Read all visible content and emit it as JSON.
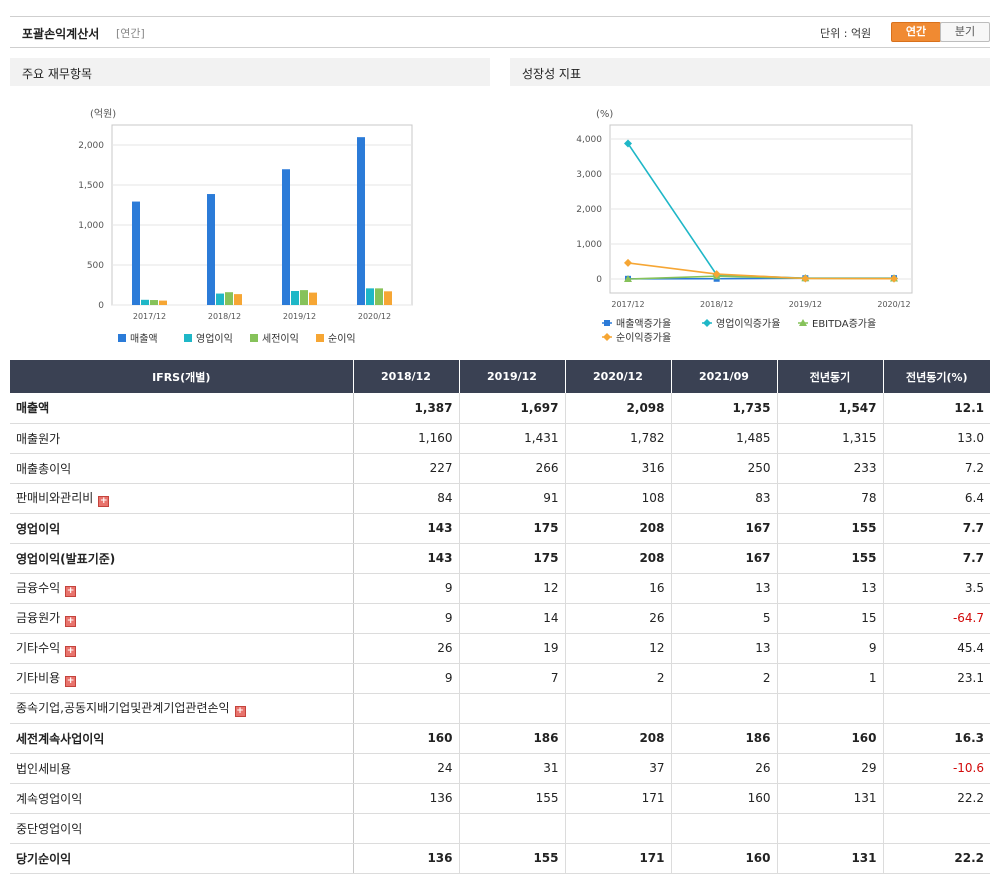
{
  "header": {
    "title": "포괄손익계산서",
    "period_tag": "[연간]",
    "unit_label": "단위 : 억원",
    "toggle_annual": "연간",
    "toggle_quarter": "분기"
  },
  "panels": {
    "left_title": "주요 재무항목",
    "right_title": "성장성 지표"
  },
  "chart_data": [
    {
      "type": "bar",
      "ylabel": "(억원)",
      "categories": [
        "2017/12",
        "2018/12",
        "2019/12",
        "2020/12"
      ],
      "yticks": [
        "0",
        "500",
        "1,000",
        "1,500",
        "2,000"
      ],
      "ylim": [
        0,
        2250
      ],
      "legend_position": "bottom",
      "grid": true,
      "series": [
        {
          "name": "매출액",
          "color": "#2b7bd8",
          "values": [
            1293,
            1387,
            1697,
            2098
          ]
        },
        {
          "name": "영업이익",
          "color": "#1fb7c7",
          "values": [
            65,
            143,
            175,
            208
          ]
        },
        {
          "name": "세전이익",
          "color": "#86c25a",
          "values": [
            62,
            160,
            186,
            208
          ]
        },
        {
          "name": "순이익",
          "color": "#f6a634",
          "values": [
            55,
            136,
            155,
            171
          ]
        }
      ]
    },
    {
      "type": "line",
      "ylabel": "(%)",
      "categories": [
        "2017/12",
        "2018/12",
        "2019/12",
        "2020/12"
      ],
      "yticks": [
        "0",
        "1,000",
        "2,000",
        "3,000",
        "4,000"
      ],
      "ylim": [
        -400,
        4400
      ],
      "legend_position": "bottom",
      "grid": true,
      "series": [
        {
          "name": "매출액증가율",
          "color": "#2b7bd8",
          "marker": "square",
          "values": [
            5,
            7,
            22,
            24
          ]
        },
        {
          "name": "영업이익증가율",
          "color": "#1fb7c7",
          "marker": "diamond",
          "values": [
            3870,
            120,
            22,
            19
          ]
        },
        {
          "name": "EBITDA증가율",
          "color": "#86c25a",
          "marker": "triangle",
          "values": [
            0,
            80,
            20,
            15
          ]
        },
        {
          "name": "순이익증가율",
          "color": "#f6a634",
          "marker": "diamond",
          "values": [
            460,
            140,
            14,
            10
          ]
        }
      ]
    }
  ],
  "table": {
    "header_label": "IFRS(개별)",
    "columns": [
      "2018/12",
      "2019/12",
      "2020/12",
      "2021/09",
      "전년동기",
      "전년동기(%)"
    ],
    "rows": [
      {
        "label": "매출액",
        "bold": true,
        "expand": false,
        "values": [
          "1,387",
          "1,697",
          "2,098",
          "1,735",
          "1,547",
          "12.1"
        ]
      },
      {
        "label": "매출원가",
        "bold": false,
        "expand": false,
        "values": [
          "1,160",
          "1,431",
          "1,782",
          "1,485",
          "1,315",
          "13.0"
        ]
      },
      {
        "label": "매출총이익",
        "bold": false,
        "expand": false,
        "values": [
          "227",
          "266",
          "316",
          "250",
          "233",
          "7.2"
        ]
      },
      {
        "label": "판매비와관리비",
        "bold": false,
        "expand": true,
        "values": [
          "84",
          "91",
          "108",
          "83",
          "78",
          "6.4"
        ]
      },
      {
        "label": "영업이익",
        "bold": true,
        "expand": false,
        "values": [
          "143",
          "175",
          "208",
          "167",
          "155",
          "7.7"
        ]
      },
      {
        "label": "영업이익(발표기준)",
        "bold": true,
        "expand": false,
        "values": [
          "143",
          "175",
          "208",
          "167",
          "155",
          "7.7"
        ]
      },
      {
        "label": "금융수익",
        "bold": false,
        "expand": true,
        "values": [
          "9",
          "12",
          "16",
          "13",
          "13",
          "3.5"
        ]
      },
      {
        "label": "금융원가",
        "bold": false,
        "expand": true,
        "values": [
          "9",
          "14",
          "26",
          "5",
          "15",
          "-64.7"
        ]
      },
      {
        "label": "기타수익",
        "bold": false,
        "expand": true,
        "values": [
          "26",
          "19",
          "12",
          "13",
          "9",
          "45.4"
        ]
      },
      {
        "label": "기타비용",
        "bold": false,
        "expand": true,
        "values": [
          "9",
          "7",
          "2",
          "2",
          "1",
          "23.1"
        ]
      },
      {
        "label": "종속기업,공동지배기업및관계기업관련손익",
        "bold": false,
        "expand": true,
        "values": [
          "",
          "",
          "",
          "",
          "",
          ""
        ]
      },
      {
        "label": "세전계속사업이익",
        "bold": true,
        "expand": false,
        "values": [
          "160",
          "186",
          "208",
          "186",
          "160",
          "16.3"
        ]
      },
      {
        "label": "법인세비용",
        "bold": false,
        "expand": false,
        "values": [
          "24",
          "31",
          "37",
          "26",
          "29",
          "-10.6"
        ]
      },
      {
        "label": "계속영업이익",
        "bold": false,
        "expand": false,
        "values": [
          "136",
          "155",
          "171",
          "160",
          "131",
          "22.2"
        ]
      },
      {
        "label": "중단영업이익",
        "bold": false,
        "expand": false,
        "values": [
          "",
          "",
          "",
          "",
          "",
          ""
        ]
      },
      {
        "label": "당기순이익",
        "bold": true,
        "expand": false,
        "values": [
          "136",
          "155",
          "171",
          "160",
          "131",
          "22.2"
        ]
      }
    ]
  }
}
